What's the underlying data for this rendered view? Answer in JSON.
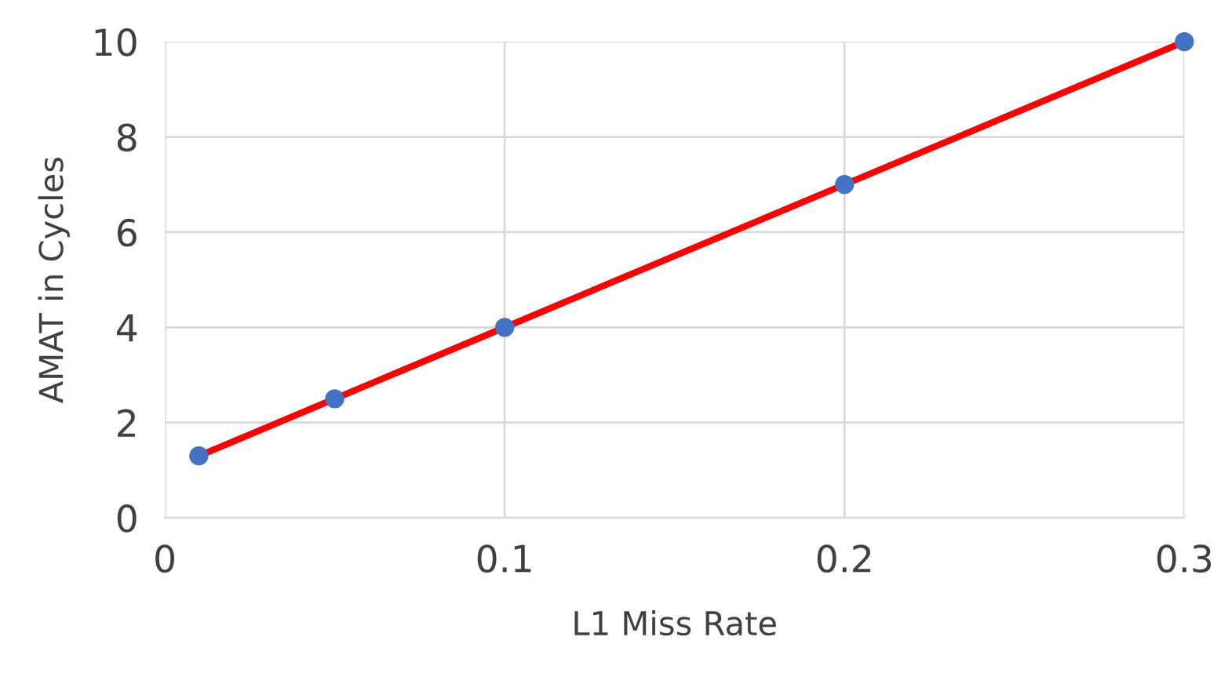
{
  "chart_data": {
    "type": "line",
    "xlabel": "L1 Miss Rate",
    "ylabel": "AMAT in Cycles",
    "x": [
      0.01,
      0.05,
      0.1,
      0.2,
      0.3
    ],
    "series": [
      {
        "color": "#ff0000",
        "values": [
          1.3,
          2.5,
          4,
          7,
          10
        ]
      },
      {
        "type": "scatter",
        "color": "#4472c4",
        "marker": "circle",
        "values": [
          1.3,
          2.5,
          4,
          7,
          10
        ]
      }
    ],
    "xlim": [
      0,
      0.3
    ],
    "xticks": [
      0,
      0.1,
      0.2,
      0.3
    ],
    "ylim": [
      0,
      10
    ],
    "yticks": [
      0,
      2,
      4,
      6,
      8,
      10
    ],
    "grid": true
  }
}
